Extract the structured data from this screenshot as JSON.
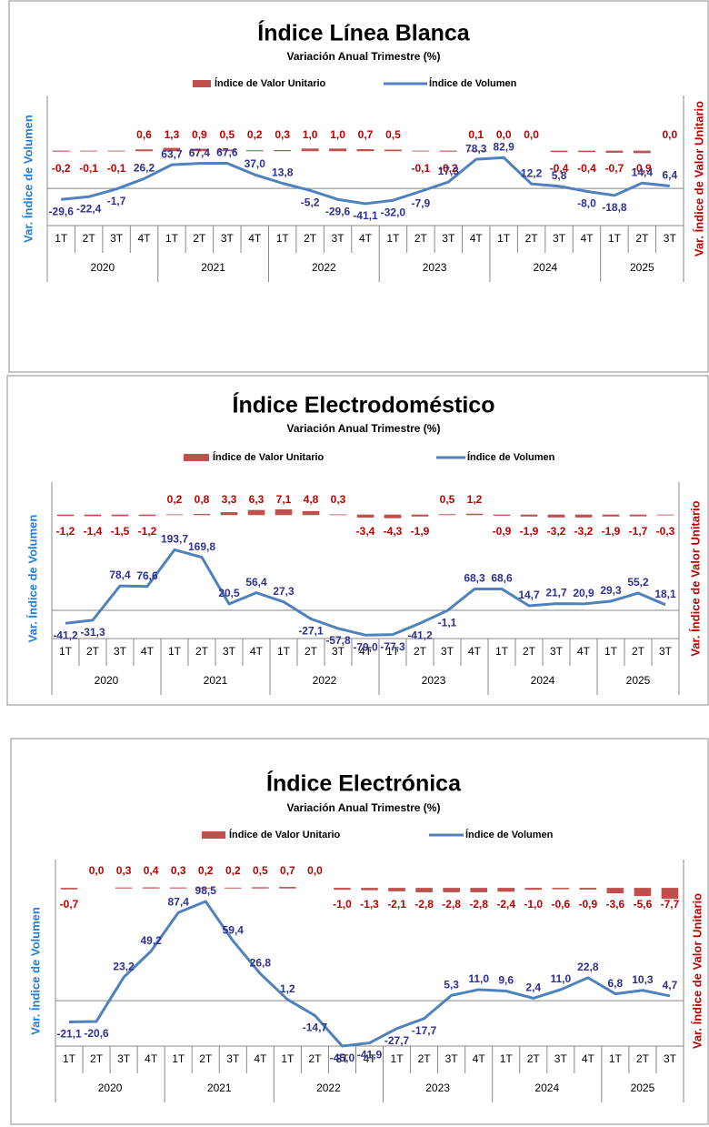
{
  "chart_data": [
    {
      "type": "combo",
      "title": "Índice Línea Blanca",
      "subtitle": "Variación Anual Trimestre  (%)",
      "ylabel": "Var. Índice de Volumen",
      "y2label": "Var. Índice de Valor Unitario",
      "legend": "top",
      "ylim": [
        -100,
        250
      ],
      "y2lim": [
        -35,
        26
      ],
      "groups": [
        {
          "label": "2020",
          "categories": [
            "1T",
            "2T",
            "3T",
            "4T"
          ]
        },
        {
          "label": "2021",
          "categories": [
            "1T",
            "2T",
            "3T",
            "4T"
          ]
        },
        {
          "label": "2022",
          "categories": [
            "1T",
            "2T",
            "3T",
            "4T"
          ]
        },
        {
          "label": "2023",
          "categories": [
            "1T",
            "2T",
            "3T",
            "4T"
          ]
        },
        {
          "label": "2024",
          "categories": [
            "1T",
            "2T",
            "3T",
            "4T"
          ]
        },
        {
          "label": "2025",
          "categories": [
            "1T",
            "2T",
            "3T"
          ]
        }
      ],
      "series": [
        {
          "name": "Índice de Valor Unitario",
          "type": "bar",
          "axis": "y2",
          "color": "#c0504d",
          "values": [
            -0.2,
            -0.1,
            -0.1,
            0.6,
            1.3,
            0.9,
            0.5,
            0.2,
            0.3,
            1.0,
            1.0,
            0.7,
            0.5,
            -0.1,
            -0.2,
            0.1,
            0,
            0,
            -0.4,
            -0.4,
            -0.7,
            -0.9,
            0
          ],
          "value_labels": [
            "-0,2",
            "-0,1",
            "-0,1",
            "0,6",
            "1,3",
            "0,9",
            "0,5",
            "0,2",
            "0,3",
            "1,0",
            "1,0",
            "0,7",
            "0,5",
            "-0,1",
            "-0,2",
            "0,1",
            "0,0",
            "0,0",
            "-0,4",
            "-0,4",
            "-0,7",
            "-0,9",
            "0,0"
          ]
        },
        {
          "name": "Índice de Volumen",
          "type": "line",
          "color": "#4f81bd",
          "values": [
            -29.6,
            -22.4,
            -1.7,
            26.2,
            63.7,
            67.4,
            67.6,
            37,
            13.8,
            -5.2,
            -29.6,
            -41.1,
            -32,
            -7.9,
            17.3,
            78.3,
            82.9,
            12.2,
            5.8,
            -8,
            -18.8,
            14.4,
            6.4
          ],
          "value_labels": [
            "-29,6",
            "-22,4",
            "-1,7",
            "26,2",
            "63,7",
            "67,4",
            "67,6",
            "37,0",
            "13,8",
            "-5,2",
            "-29,6",
            "-41,1",
            "-32,0",
            "-7,9",
            "17,3",
            "78,3",
            "82,9",
            "12,2",
            "5,8",
            "-8,0",
            "-18,8",
            "14,4",
            "6,4"
          ]
        }
      ]
    },
    {
      "type": "combo",
      "title": "Índice Electrodoméstico",
      "subtitle": "Variación Anual Trimestre  (%)",
      "ylabel": "Var. Índice de Volumen",
      "y2label": "Var. Índice de Valor Unitario",
      "legend": "top",
      "ylim": [
        -90,
        410
      ],
      "y2lim": [
        -170,
        45
      ],
      "groups": [
        {
          "label": "2020",
          "categories": [
            "1T",
            "2T",
            "3T",
            "4T"
          ]
        },
        {
          "label": "2021",
          "categories": [
            "1T",
            "2T",
            "3T",
            "4T"
          ]
        },
        {
          "label": "2022",
          "categories": [
            "1T",
            "2T",
            "3T",
            "4T"
          ]
        },
        {
          "label": "2023",
          "categories": [
            "1T",
            "2T",
            "3T",
            "4T"
          ]
        },
        {
          "label": "2024",
          "categories": [
            "1T",
            "2T",
            "3T",
            "4T"
          ]
        },
        {
          "label": "2025",
          "categories": [
            "1T",
            "2T",
            "3T"
          ]
        }
      ],
      "series": [
        {
          "name": "Índice de Valor Unitario",
          "type": "bar",
          "axis": "y2",
          "color": "#c0504d",
          "values": [
            -1.2,
            -1.4,
            -1.5,
            -1.2,
            0.2,
            0.8,
            3.3,
            6.3,
            7.1,
            4.8,
            0.3,
            -3.4,
            -4.3,
            -1.9,
            0.5,
            1.2,
            -0.9,
            -1.9,
            -3.2,
            -3.2,
            -1.9,
            -1.7,
            -0.3
          ],
          "value_labels": [
            "-1,2",
            "-1,4",
            "-1,5",
            "-1,2",
            "0,2",
            "0,8",
            "3,3",
            "6,3",
            "7,1",
            "4,8",
            "0,3",
            "-3,4",
            "-4,3",
            "-1,9",
            "0,5",
            "1,2",
            "-0,9",
            "-1,9",
            "-3,2",
            "-3,2",
            "-1,9",
            "-1,7",
            "-0,3"
          ]
        },
        {
          "name": "Índice de Volumen",
          "type": "line",
          "color": "#4f81bd",
          "values": [
            -41.2,
            -31.3,
            78.4,
            76.6,
            193.7,
            169.8,
            20.5,
            56.4,
            27.3,
            -27.1,
            -57.8,
            -79,
            -77.3,
            -41.2,
            -1.1,
            68.3,
            68.6,
            14.7,
            21.7,
            20.9,
            29.3,
            55.2,
            18.1
          ],
          "value_labels": [
            "-41,2",
            "-31,3",
            "78,4",
            "76,6",
            "193,7",
            "169,8",
            "20,5",
            "56,4",
            "27,3",
            "-27,1",
            "-57,8",
            "-79,0",
            "-77,3",
            "-41,2",
            "-1,1",
            "68,3",
            "68,6",
            "14,7",
            "21,7",
            "20,9",
            "29,3",
            "55,2",
            "18,1"
          ]
        }
      ]
    },
    {
      "type": "combo",
      "title": "Índice Electrónica",
      "subtitle": "Variación Anual Trimestre  (%)",
      "ylabel": "Var. Índice de Volumen",
      "y2label": "Var. Índice de Valor Unitario",
      "legend": "top",
      "ylim": [
        -45,
        140
      ],
      "y2lim": [
        -116,
        21
      ],
      "groups": [
        {
          "label": "2020",
          "categories": [
            "1T",
            "2T",
            "3T",
            "4T"
          ]
        },
        {
          "label": "2021",
          "categories": [
            "1T",
            "2T",
            "3T",
            "4T"
          ]
        },
        {
          "label": "2022",
          "categories": [
            "1T",
            "2T",
            "3T",
            "4T"
          ]
        },
        {
          "label": "2023",
          "categories": [
            "1T",
            "2T",
            "3T",
            "4T"
          ]
        },
        {
          "label": "2024",
          "categories": [
            "1T",
            "2T",
            "3T",
            "4T"
          ]
        },
        {
          "label": "2025",
          "categories": [
            "1T",
            "2T",
            "3T"
          ]
        }
      ],
      "series": [
        {
          "name": "Índice de Valor Unitario",
          "type": "bar",
          "axis": "y2",
          "color": "#c0504d",
          "values": [
            -0.7,
            0,
            0.3,
            0.4,
            0.3,
            0.2,
            0.2,
            0.5,
            0.7,
            0,
            -1.0,
            -1.3,
            -2.1,
            -2.8,
            -2.8,
            -2.8,
            -2.4,
            -1.0,
            -0.6,
            -0.9,
            -3.6,
            -5.6,
            -7.7
          ],
          "value_labels": [
            "-0,7",
            "0,0",
            "0,3",
            "0,4",
            "0,3",
            "0,2",
            "0,2",
            "0,5",
            "0,7",
            "0,0",
            "-1,0",
            "-1,3",
            "-2,1",
            "-2,8",
            "-2,8",
            "-2,8",
            "-2,4",
            "-1,0",
            "-0,6",
            "-0,9",
            "-3,6",
            "-5,6",
            "-7,7"
          ]
        },
        {
          "name": "Índice de Volumen",
          "type": "line",
          "color": "#4f81bd",
          "values": [
            -21.1,
            -20.6,
            23.2,
            49.2,
            87.4,
            98.5,
            59.4,
            26.8,
            1.2,
            -14.7,
            -45,
            -41.9,
            -27.7,
            -17.7,
            5.3,
            11,
            9.6,
            2.4,
            11,
            22.8,
            6.8,
            10.3,
            4.7
          ],
          "value_labels": [
            "-21,1",
            "-20,6",
            "23,2",
            "49,2",
            "87,4",
            "98,5",
            "59,4",
            "26,8",
            "1,2",
            "-14,7",
            "-45,0",
            "-41,9",
            "-27,7",
            "-17,7",
            "5,3",
            "11,0",
            "9,6",
            "2,4",
            "11,0",
            "22,8",
            "6,8",
            "10,3",
            "4,7"
          ]
        }
      ]
    }
  ]
}
